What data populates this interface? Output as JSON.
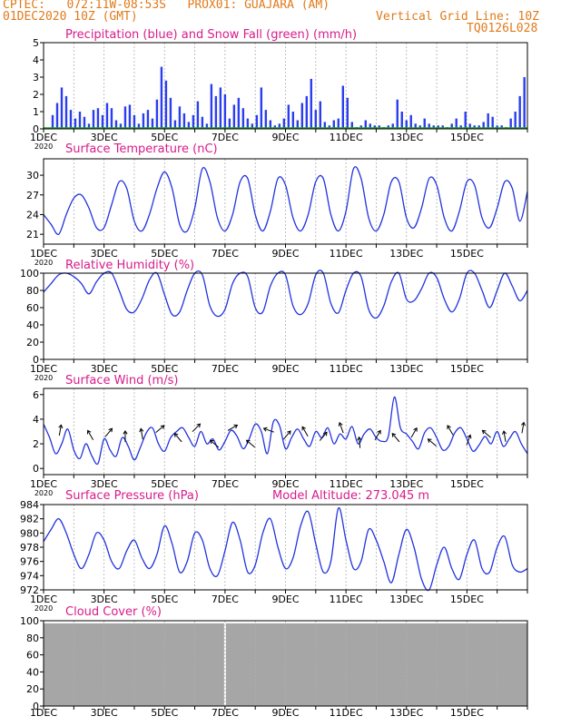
{
  "header": {
    "line1": "CPTEC:   072:11W-08:53S   PROX01: GUAJARA (AM)",
    "line2_left": "01DEC2020 10Z (GMT)",
    "line2_right": "Vertical Grid Line: 10Z",
    "code": "TQ0126L028"
  },
  "colors": {
    "header": "#e07a1a",
    "title": "#d81b8a",
    "line": "#2233dd",
    "precip": "#2a3ef0",
    "snow": "#1aa31a",
    "cloud": "#a6a6a6"
  },
  "x_ticks": [
    "1DEC",
    "3DEC",
    "5DEC",
    "7DEC",
    "9DEC",
    "11DEC",
    "13DEC",
    "15DEC"
  ],
  "x_sub": "2020",
  "chart_data": [
    {
      "type": "bar",
      "title": "Precipitation (blue) and Snow Fall (green) (mm/h)",
      "ylim": [
        0,
        5
      ],
      "yticks": [
        0,
        1,
        2,
        3,
        4,
        5
      ],
      "series": [
        {
          "name": "Precipitation",
          "x": [
            0.3,
            0.45,
            0.6,
            0.75,
            0.9,
            1.05,
            1.2,
            1.35,
            1.5,
            1.65,
            1.8,
            1.95,
            2.1,
            2.25,
            2.4,
            2.55,
            2.7,
            2.85,
            3.0,
            3.15,
            3.3,
            3.45,
            3.6,
            3.75,
            3.9,
            4.05,
            4.2,
            4.35,
            4.5,
            4.65,
            4.8,
            4.95,
            5.1,
            5.25,
            5.4,
            5.55,
            5.7,
            5.85,
            6.0,
            6.15,
            6.3,
            6.45,
            6.6,
            6.75,
            6.9,
            7.05,
            7.2,
            7.35,
            7.5,
            7.65,
            7.8,
            7.95,
            8.1,
            8.25,
            8.4,
            8.55,
            8.7,
            8.85,
            9.0,
            9.15,
            9.3,
            9.45,
            9.6,
            9.75,
            9.9,
            10.05,
            10.2,
            10.35,
            10.5,
            10.65,
            10.8,
            10.95,
            11.1,
            11.25,
            11.4,
            11.55,
            11.7,
            11.85,
            12.0,
            12.15,
            12.3,
            12.45,
            12.6,
            12.75,
            12.9,
            13.05,
            13.2,
            13.35,
            13.5,
            13.65,
            13.8,
            13.95,
            14.1,
            14.25,
            14.4,
            14.55,
            14.7,
            14.85,
            15.0,
            15.15,
            15.3,
            15.45,
            15.6,
            15.75,
            15.9
          ],
          "values": [
            0.8,
            1.5,
            2.4,
            1.9,
            1.1,
            0.6,
            1.0,
            0.7,
            0.3,
            1.1,
            1.2,
            0.8,
            1.5,
            1.2,
            0.5,
            0.3,
            1.3,
            1.4,
            0.8,
            0.3,
            0.9,
            1.1,
            0.6,
            1.7,
            3.6,
            2.8,
            1.8,
            0.5,
            1.3,
            0.9,
            0.4,
            0.8,
            1.6,
            0.7,
            0.3,
            2.6,
            1.9,
            2.4,
            2.0,
            0.6,
            1.4,
            1.8,
            1.2,
            0.6,
            0.3,
            0.8,
            2.4,
            1.1,
            0.5,
            0.2,
            0.3,
            0.6,
            1.4,
            1.0,
            0.5,
            1.5,
            1.9,
            2.9,
            1.1,
            1.6,
            0.4,
            0.2,
            0.5,
            0.6,
            2.5,
            1.8,
            0.4,
            0.1,
            0.2,
            0.5,
            0.3,
            0.2,
            0.2,
            0.1,
            0.2,
            0.3,
            1.7,
            1.0,
            0.5,
            0.8,
            0.3,
            0.2,
            0.6,
            0.3,
            0.2,
            0.2,
            0.2,
            0.1,
            0.3,
            0.6,
            0.2,
            1.0,
            0.3,
            0.2,
            0.2,
            0.4,
            0.9,
            0.7,
            0.2,
            0.2,
            0.1,
            0.6,
            1.0,
            1.9,
            3.0
          ]
        },
        {
          "name": "Snow Fall",
          "x": [
            0,
            16
          ],
          "values": [
            0,
            0
          ]
        }
      ]
    },
    {
      "type": "line",
      "title": "Surface Temperature (nC)",
      "ylim": [
        19.5,
        32.5
      ],
      "yticks": [
        21,
        24,
        27,
        30
      ],
      "x": [
        0,
        0.25,
        0.5,
        0.75,
        1.0,
        1.25,
        1.5,
        1.75,
        2.0,
        2.25,
        2.5,
        2.75,
        3.0,
        3.25,
        3.5,
        3.75,
        4.0,
        4.25,
        4.5,
        4.75,
        5.0,
        5.25,
        5.5,
        5.75,
        6.0,
        6.25,
        6.5,
        6.75,
        7.0,
        7.25,
        7.5,
        7.75,
        8.0,
        8.25,
        8.5,
        8.75,
        9.0,
        9.25,
        9.5,
        9.75,
        10.0,
        10.25,
        10.5,
        10.75,
        11.0,
        11.25,
        11.5,
        11.75,
        12.0,
        12.25,
        12.5,
        12.75,
        13.0,
        13.25,
        13.5,
        13.75,
        14.0,
        14.25,
        14.5,
        14.75,
        15.0,
        15.25,
        15.5,
        15.75,
        16.0
      ],
      "series": [
        {
          "name": "Temperature",
          "values": [
            24.0,
            22.5,
            21.0,
            24.0,
            26.5,
            27.0,
            25.0,
            22.0,
            22.0,
            25.5,
            29.0,
            28.0,
            23.0,
            21.5,
            24.0,
            28.0,
            30.5,
            28.0,
            22.5,
            21.5,
            25.0,
            31.0,
            29.0,
            23.5,
            21.5,
            24.0,
            29.0,
            29.5,
            24.0,
            21.5,
            24.5,
            29.5,
            28.5,
            23.5,
            21.5,
            24.0,
            29.0,
            29.5,
            24.0,
            21.5,
            24.5,
            31.0,
            29.5,
            23.5,
            21.5,
            24.0,
            29.0,
            29.0,
            23.5,
            22.0,
            25.0,
            29.5,
            28.5,
            23.5,
            21.5,
            24.5,
            29.0,
            28.5,
            23.5,
            22.0,
            25.0,
            29.0,
            28.0,
            23.0,
            27.5
          ]
        }
      ]
    },
    {
      "type": "line",
      "title": "Relative Humidity (%)",
      "ylim": [
        0,
        100
      ],
      "yticks": [
        0,
        20,
        40,
        60,
        80,
        100
      ],
      "x": [
        0,
        0.25,
        0.5,
        0.75,
        1.0,
        1.25,
        1.5,
        1.75,
        2.0,
        2.25,
        2.5,
        2.75,
        3.0,
        3.25,
        3.5,
        3.75,
        4.0,
        4.25,
        4.5,
        4.75,
        5.0,
        5.25,
        5.5,
        5.75,
        6.0,
        6.25,
        6.5,
        6.75,
        7.0,
        7.25,
        7.5,
        7.75,
        8.0,
        8.25,
        8.5,
        8.75,
        9.0,
        9.25,
        9.5,
        9.75,
        10.0,
        10.25,
        10.5,
        10.75,
        11.0,
        11.25,
        11.5,
        11.75,
        12.0,
        12.25,
        12.5,
        12.75,
        13.0,
        13.25,
        13.5,
        13.75,
        14.0,
        14.25,
        14.5,
        14.75,
        15.0,
        15.25,
        15.5,
        15.75,
        16.0
      ],
      "series": [
        {
          "name": "RH",
          "values": [
            78,
            88,
            98,
            100,
            96,
            88,
            76,
            90,
            100,
            100,
            80,
            58,
            55,
            70,
            92,
            100,
            75,
            52,
            55,
            80,
            100,
            98,
            62,
            50,
            58,
            88,
            100,
            96,
            60,
            55,
            85,
            100,
            98,
            62,
            52,
            65,
            98,
            100,
            65,
            54,
            80,
            100,
            96,
            58,
            48,
            62,
            90,
            100,
            70,
            68,
            82,
            100,
            95,
            70,
            55,
            70,
            100,
            100,
            80,
            60,
            80,
            100,
            85,
            68,
            80
          ]
        }
      ]
    },
    {
      "type": "line",
      "title": "Surface Wind (m/s)",
      "ylim": [
        -0.5,
        6.5
      ],
      "yticks": [
        0,
        2,
        4,
        6
      ],
      "x": [
        0,
        0.2,
        0.4,
        0.6,
        0.8,
        1.0,
        1.2,
        1.4,
        1.6,
        1.8,
        2.0,
        2.2,
        2.4,
        2.6,
        2.8,
        3.0,
        3.2,
        3.4,
        3.6,
        3.8,
        4.0,
        4.2,
        4.4,
        4.6,
        4.8,
        5.0,
        5.2,
        5.4,
        5.6,
        5.8,
        6.0,
        6.2,
        6.4,
        6.6,
        6.8,
        7.0,
        7.2,
        7.4,
        7.6,
        7.8,
        8.0,
        8.2,
        8.4,
        8.6,
        8.8,
        9.0,
        9.2,
        9.4,
        9.6,
        9.8,
        10.0,
        10.2,
        10.4,
        10.6,
        10.8,
        11.0,
        11.2,
        11.4,
        11.6,
        11.8,
        12.0,
        12.2,
        12.4,
        12.6,
        12.8,
        13.0,
        13.2,
        13.4,
        13.6,
        13.8,
        14.0,
        14.2,
        14.4,
        14.6,
        14.8,
        15.0,
        15.2,
        15.4,
        15.6,
        15.8,
        16.0
      ],
      "series": [
        {
          "name": "Wind speed",
          "values": [
            3.6,
            2.5,
            1.2,
            2.0,
            3.2,
            1.5,
            0.8,
            2.0,
            1.0,
            0.4,
            2.4,
            1.5,
            1.0,
            2.5,
            1.8,
            0.7,
            1.7,
            2.9,
            3.3,
            2.0,
            1.4,
            2.5,
            3.0,
            3.3,
            2.5,
            1.8,
            3.0,
            2.0,
            2.4,
            1.5,
            2.2,
            3.1,
            2.6,
            1.6,
            2.4,
            3.6,
            3.0,
            1.2,
            3.8,
            3.5,
            1.6,
            2.5,
            3.2,
            2.4,
            1.8,
            3.0,
            2.5,
            3.3,
            2.0,
            2.8,
            2.4,
            3.4,
            2.0,
            2.8,
            3.2,
            2.5,
            2.2,
            2.6,
            5.8,
            3.3,
            2.8,
            2.2,
            1.6,
            2.9,
            3.3,
            2.5,
            1.5,
            1.8,
            2.9,
            3.3,
            2.4,
            1.4,
            1.9,
            2.6,
            2.0,
            3.0,
            1.8,
            2.4,
            3.0,
            2.0,
            1.2
          ]
        }
      ],
      "vectors": {
        "x": [
          0.55,
          1.55,
          2.15,
          2.7,
          3.25,
          3.85,
          4.45,
          5.05,
          5.65,
          6.25,
          6.85,
          7.45,
          8.05,
          8.65,
          9.25,
          9.85,
          10.45,
          11.05,
          11.65,
          12.25,
          12.85,
          13.45,
          14.05,
          14.65,
          15.25,
          15.85
        ],
        "y": [
          3.1,
          2.7,
          2.9,
          2.6,
          2.8,
          3.2,
          2.5,
          3.3,
          2.0,
          3.3,
          2.0,
          3.1,
          2.7,
          3.0,
          2.6,
          3.3,
          2.1,
          2.7,
          2.5,
          2.9,
          2.1,
          3.1,
          2.3,
          2.8,
          2.6,
          3.3
        ],
        "angle_deg": [
          -80,
          -120,
          -50,
          -90,
          -100,
          -40,
          -130,
          -45,
          -140,
          -30,
          -140,
          -160,
          -50,
          -120,
          -50,
          -110,
          -95,
          -60,
          -130,
          -60,
          -140,
          -120,
          -70,
          -140,
          -100,
          -80
        ]
      }
    },
    {
      "type": "line",
      "title": "Surface Pressure (hPa)",
      "annotation": "Model Altitude: 273.045  m",
      "ylim": [
        972,
        984
      ],
      "yticks": [
        972,
        974,
        976,
        978,
        980,
        982,
        984
      ],
      "x": [
        0,
        0.25,
        0.5,
        0.75,
        1.0,
        1.25,
        1.5,
        1.75,
        2.0,
        2.25,
        2.5,
        2.75,
        3.0,
        3.25,
        3.5,
        3.75,
        4.0,
        4.25,
        4.5,
        4.75,
        5.0,
        5.25,
        5.5,
        5.75,
        6.0,
        6.25,
        6.5,
        6.75,
        7.0,
        7.25,
        7.5,
        7.75,
        8.0,
        8.25,
        8.5,
        8.75,
        9.0,
        9.25,
        9.5,
        9.75,
        10.0,
        10.25,
        10.5,
        10.75,
        11.0,
        11.25,
        11.5,
        11.75,
        12.0,
        12.25,
        12.5,
        12.75,
        13.0,
        13.25,
        13.5,
        13.75,
        14.0,
        14.25,
        14.5,
        14.75,
        15.0,
        15.25,
        15.5,
        15.75,
        16.0
      ],
      "series": [
        {
          "name": "Pressure",
          "values": [
            978.8,
            980.5,
            982.0,
            980.0,
            977.0,
            975.0,
            977.0,
            980.0,
            979.0,
            976.0,
            975.0,
            977.5,
            979.0,
            976.5,
            975.0,
            977.0,
            981.0,
            978.5,
            974.5,
            976.0,
            980.0,
            979.0,
            975.0,
            974.0,
            977.5,
            981.5,
            979.0,
            974.5,
            975.5,
            980.0,
            982.0,
            978.0,
            975.0,
            976.5,
            981.0,
            983.0,
            978.5,
            974.5,
            976.0,
            983.5,
            979.0,
            975.0,
            976.0,
            980.5,
            979.0,
            976.0,
            973.0,
            977.0,
            980.5,
            978.0,
            973.5,
            972.0,
            975.5,
            978.0,
            975.0,
            973.5,
            977.0,
            979.0,
            975.0,
            974.5,
            978.0,
            979.5,
            975.5,
            974.5,
            975.0
          ]
        }
      ]
    },
    {
      "type": "area",
      "title": "Cloud Cover (%)",
      "ylim": [
        0,
        100
      ],
      "yticks": [
        0,
        20,
        40,
        60,
        80,
        100
      ],
      "x": [
        0,
        16
      ],
      "series": [
        {
          "name": "Cloud cover",
          "values": [
            97,
            97
          ]
        }
      ],
      "gap_x": [
        6.0
      ]
    }
  ]
}
